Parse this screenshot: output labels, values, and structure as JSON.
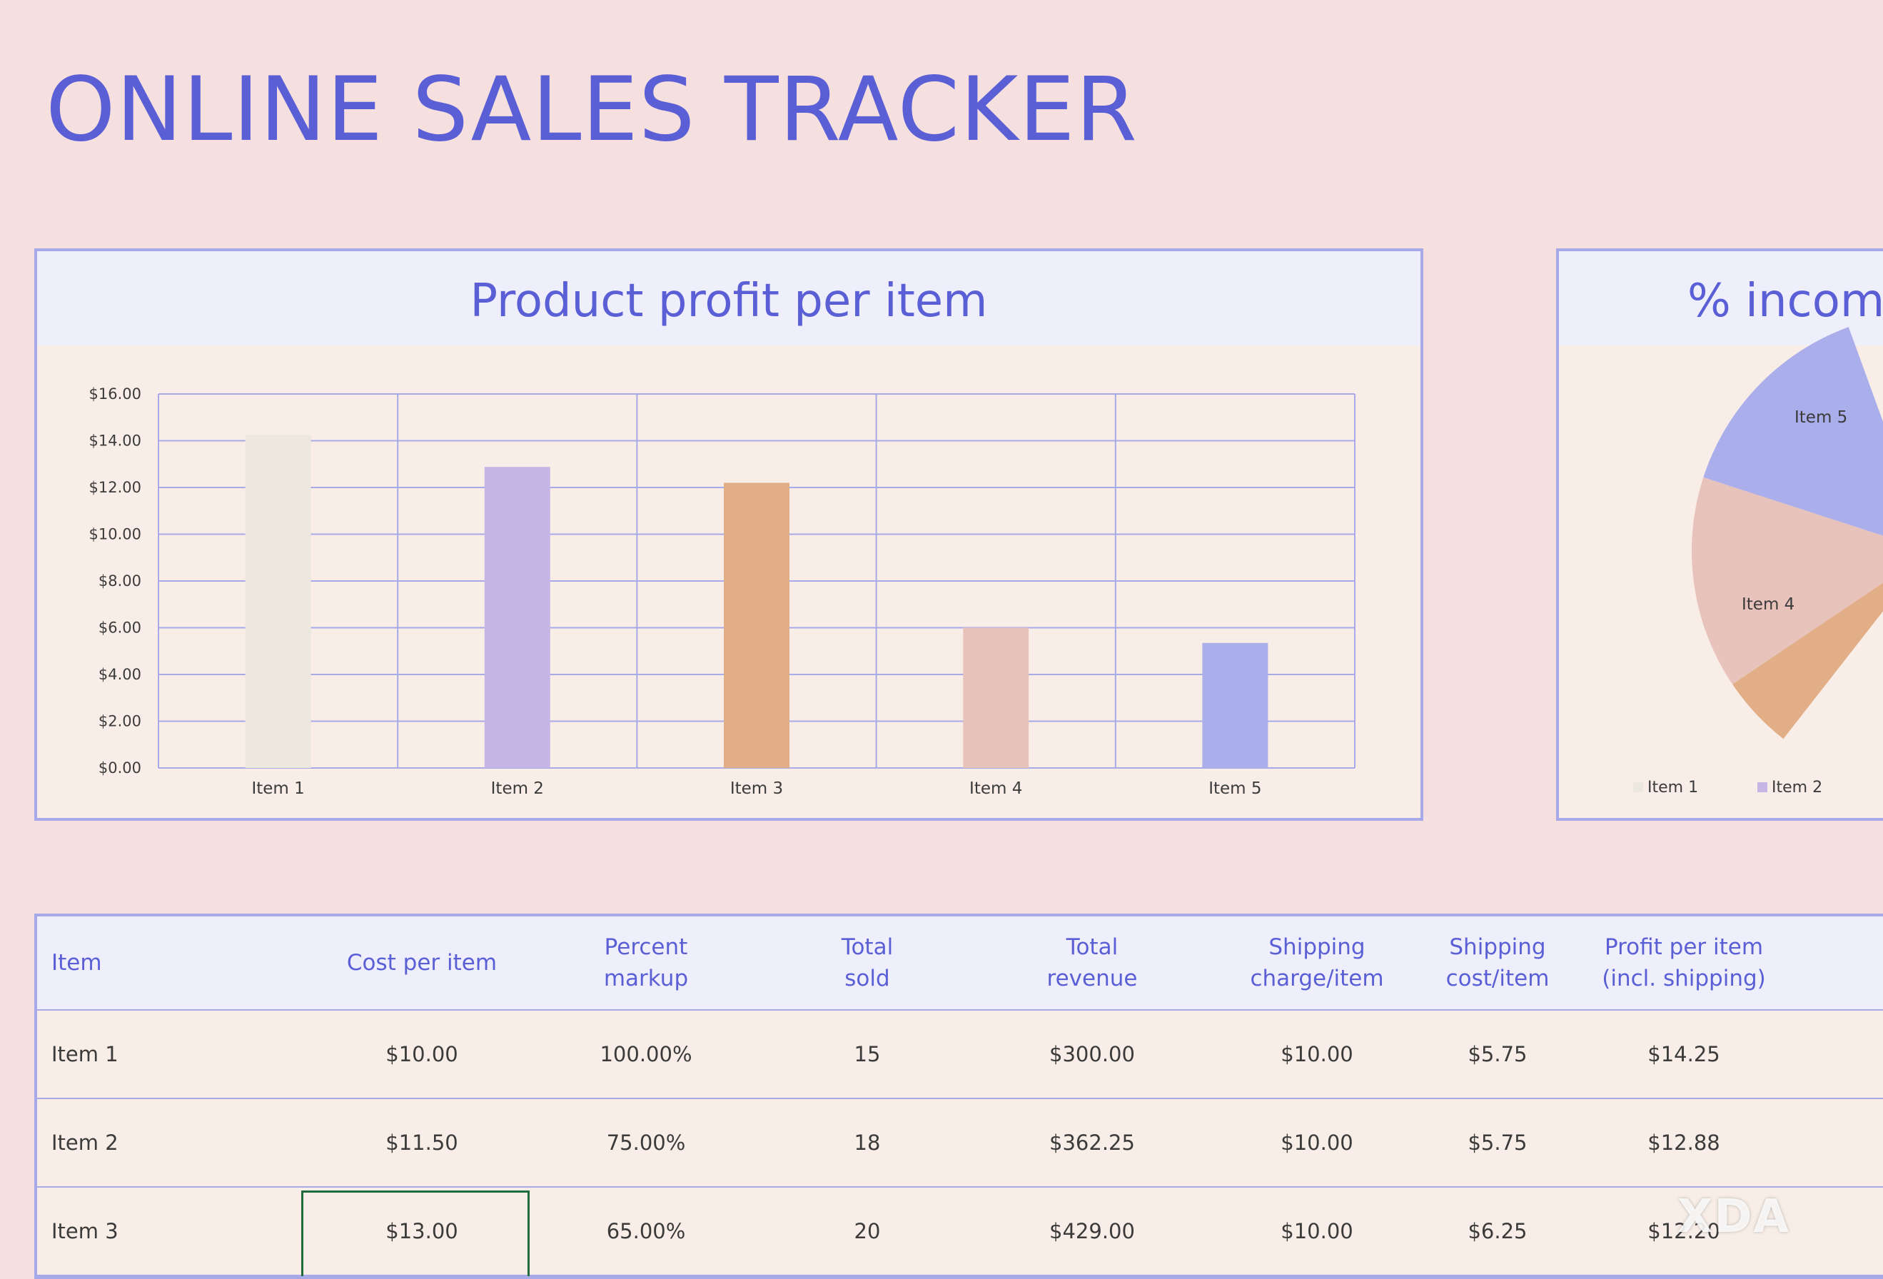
{
  "page": {
    "title": "ONLINE SALES TRACKER"
  },
  "bar_chart": {
    "title": "Product profit per item"
  },
  "pie_chart": {
    "title": "% income"
  },
  "colors": {
    "accent": "#5b5fd6",
    "border": "#a7a9e8",
    "item_1": "#ece8dd",
    "item_2": "#c6b6e5",
    "item_3": "#e2ae87",
    "item_4": "#e8c3bc",
    "item_5": "#aaaeea"
  },
  "chart_data": [
    {
      "type": "bar",
      "title": "Product profit per item",
      "categories": [
        "Item 1",
        "Item 2",
        "Item 3",
        "Item 4",
        "Item 5"
      ],
      "values": [
        14.25,
        12.88,
        12.2,
        6.0,
        5.35
      ],
      "y_tick_labels": [
        "$0.00",
        "$2.00",
        "$4.00",
        "$6.00",
        "$8.00",
        "$10.00",
        "$12.00",
        "$14.00",
        "$16.00"
      ],
      "ylim": [
        0,
        16
      ],
      "grid": true,
      "bar_colors": [
        "#ece8dd",
        "#c6b6e5",
        "#e2ae87",
        "#e8c3bc",
        "#aaaeea"
      ]
    },
    {
      "type": "pie",
      "title": "% income",
      "visible_labels": [
        "Item 5",
        "Item 4"
      ],
      "legend": [
        "Item 1",
        "Item 2"
      ],
      "legend_placement": "bottom",
      "slice_colors": {
        "Item 4": "#e8c3bc",
        "Item 5": "#aaaeea",
        "Item 3": "#e2ae87"
      }
    }
  ],
  "table": {
    "headers": [
      [
        "Item"
      ],
      [
        "Cost per item"
      ],
      [
        "Percent",
        "markup"
      ],
      [
        "Total",
        "sold"
      ],
      [
        "Total",
        "revenue"
      ],
      [
        "Shipping",
        "charge/item"
      ],
      [
        "Shipping",
        "cost/item"
      ],
      [
        "Profit per item",
        "(incl. shipping)"
      ]
    ],
    "rows": [
      [
        "Item 1",
        "$10.00",
        "100.00%",
        "15",
        "$300.00",
        "$10.00",
        "$5.75",
        "$14.25"
      ],
      [
        "Item 2",
        "$11.50",
        "75.00%",
        "18",
        "$362.25",
        "$10.00",
        "$5.75",
        "$12.88"
      ],
      [
        "Item 3",
        "$13.00",
        "65.00%",
        "20",
        "$429.00",
        "$10.00",
        "$6.25",
        "$12.20"
      ]
    ]
  },
  "watermark": "XDA"
}
